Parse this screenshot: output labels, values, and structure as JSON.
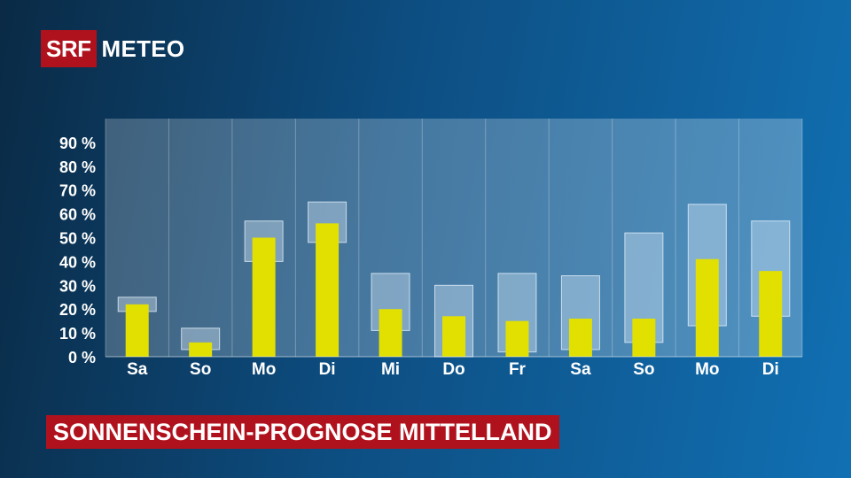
{
  "branding": {
    "logo_box": "SRF",
    "logo_text": "METEO"
  },
  "title": "SONNENSCHEIN-PROGNOSE MITTELLAND",
  "chart_data": {
    "type": "bar",
    "categories": [
      "Sa",
      "So",
      "Mo",
      "Di",
      "Mi",
      "Do",
      "Fr",
      "Sa",
      "So",
      "Mo",
      "Di"
    ],
    "series": [
      {
        "values": [
          22,
          6,
          50,
          56,
          20,
          17,
          15,
          16,
          16,
          41,
          36
        ],
        "color": "#e2e000"
      }
    ],
    "ranges": [
      {
        "low": 19,
        "high": 25
      },
      {
        "low": 3,
        "high": 12
      },
      {
        "low": 40,
        "high": 57
      },
      {
        "low": 48,
        "high": 65
      },
      {
        "low": 11,
        "high": 35
      },
      {
        "low": 0,
        "high": 30
      },
      {
        "low": 2,
        "high": 35
      },
      {
        "low": 3,
        "high": 34
      },
      {
        "low": 6,
        "high": 52
      },
      {
        "low": 13,
        "high": 64
      },
      {
        "low": 17,
        "high": 57
      }
    ],
    "ylim": [
      0,
      100
    ],
    "yticks": [
      "0 %",
      "10 %",
      "20 %",
      "30 %",
      "40 %",
      "50 %",
      "60 %",
      "70 %",
      "80 %",
      "90 %"
    ],
    "grid": true,
    "colors": {
      "bar": "#e2e000",
      "range": "#c6dcee"
    }
  }
}
